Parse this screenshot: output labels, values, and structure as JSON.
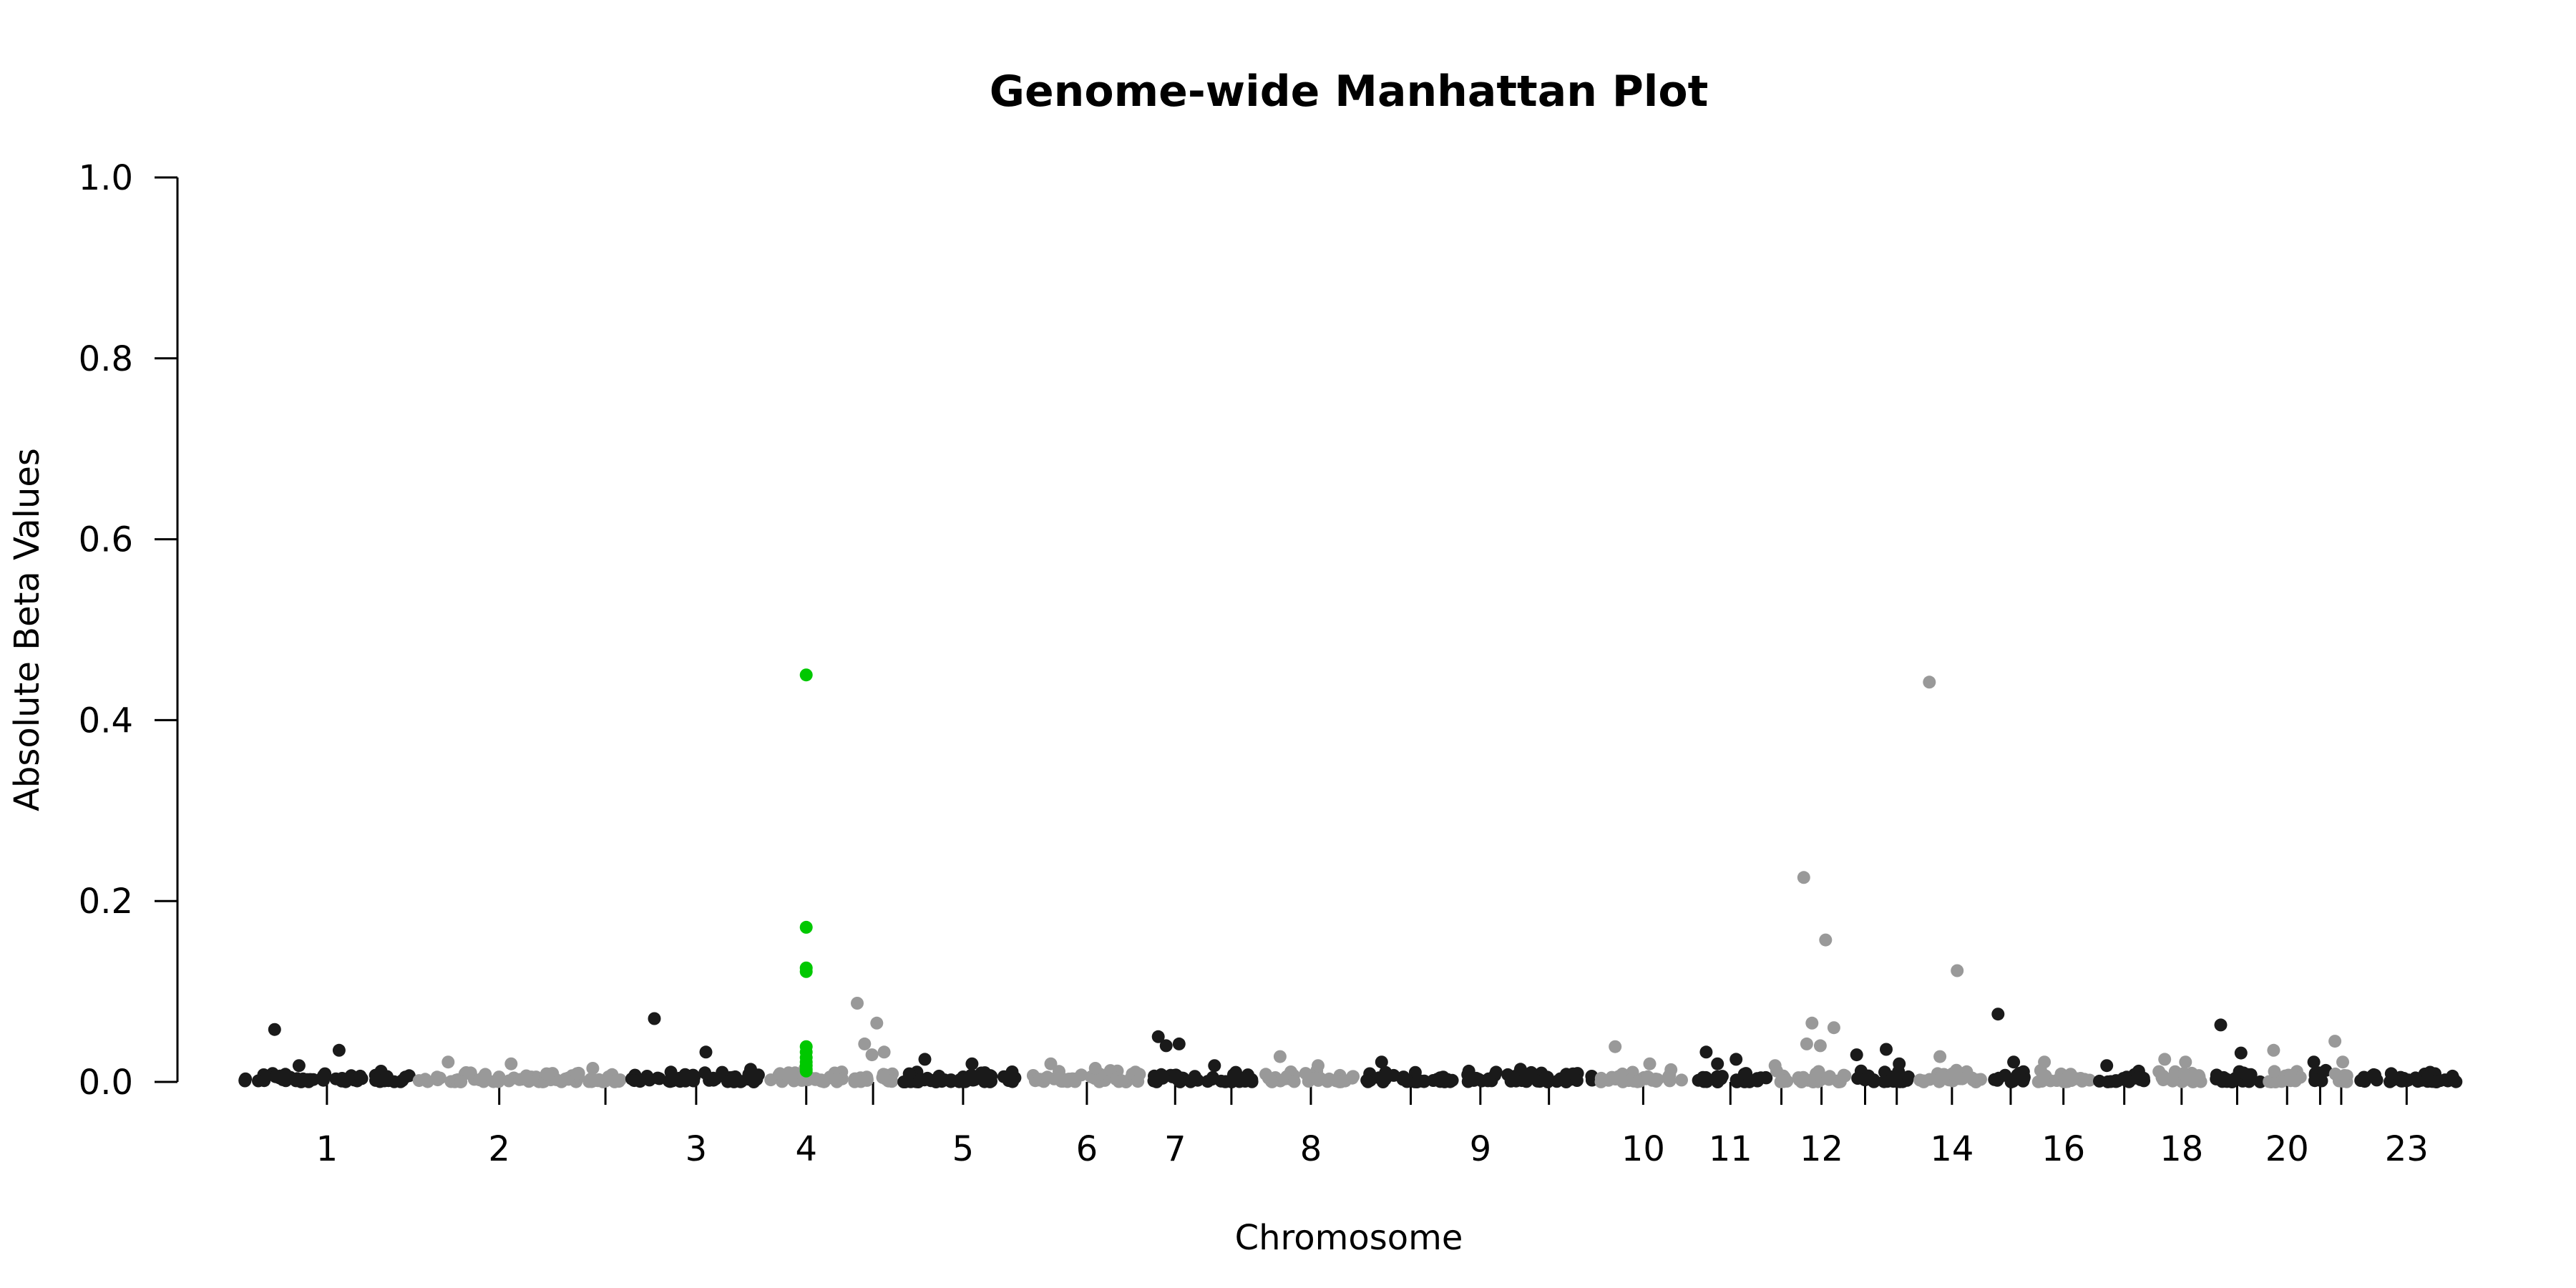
{
  "chart_data": {
    "type": "scatter",
    "title": "Genome-wide Manhattan Plot",
    "xlabel": "Chromosome",
    "ylabel": "Absolute Beta Values",
    "ylim": [
      0,
      1
    ],
    "y_ticks": [
      "0.0",
      "0.2",
      "0.4",
      "0.6",
      "0.8",
      "1.0"
    ],
    "x_tick_labels": [
      "1",
      "2",
      "3",
      "4",
      "5",
      "6",
      "7",
      "8",
      "9",
      "10",
      "11",
      "12",
      "14",
      "16",
      "18",
      "20",
      "23"
    ],
    "grid": false,
    "legend": "none",
    "colors": {
      "dark": "#1a1a1a",
      "light": "#999999",
      "highlight": "#00c800"
    },
    "chromosomes": [
      {
        "label": "1",
        "color": "dark",
        "peaks": [
          0.058,
          0.035,
          0.018
        ]
      },
      {
        "label": "2",
        "color": "light",
        "peaks": [
          0.022,
          0.02
        ]
      },
      {
        "label": "",
        "color": "light",
        "peaks": [
          0.015
        ]
      },
      {
        "label": "3",
        "color": "dark",
        "peaks": [
          0.07,
          0.033
        ]
      },
      {
        "label": "4",
        "color": "highlight",
        "peaks": [
          0.45,
          0.171,
          0.126,
          0.122,
          0.039,
          0.033,
          0.027,
          0.022,
          0.018,
          0.014,
          0.012
        ]
      },
      {
        "label": "",
        "color": "light",
        "peaks": [
          0.087,
          0.065,
          0.042,
          0.033,
          0.03
        ]
      },
      {
        "label": "5",
        "color": "dark",
        "peaks": [
          0.025,
          0.02
        ]
      },
      {
        "label": "6",
        "color": "light",
        "peaks": [
          0.02,
          0.015
        ]
      },
      {
        "label": "7",
        "color": "dark",
        "peaks": [
          0.05,
          0.042,
          0.04
        ]
      },
      {
        "label": "",
        "color": "dark",
        "peaks": [
          0.018
        ]
      },
      {
        "label": "8",
        "color": "light",
        "peaks": [
          0.028,
          0.018
        ]
      },
      {
        "label": "",
        "color": "dark",
        "peaks": [
          0.022
        ]
      },
      {
        "label": "9",
        "color": "dark",
        "peaks": [
          0.008
        ]
      },
      {
        "label": "",
        "color": "dark",
        "peaks": [
          0.014
        ]
      },
      {
        "label": "10",
        "color": "light",
        "peaks": [
          0.039,
          0.02
        ]
      },
      {
        "label": "11",
        "color": "dark",
        "peaks": [
          0.033,
          0.025,
          0.02
        ]
      },
      {
        "label": "",
        "color": "light",
        "peaks": [
          0.018
        ]
      },
      {
        "label": "12",
        "color": "light",
        "peaks": [
          0.226,
          0.157,
          0.065,
          0.06,
          0.04,
          0.042
        ]
      },
      {
        "label": "",
        "color": "dark",
        "peaks": [
          0.03
        ]
      },
      {
        "label": "",
        "color": "dark",
        "peaks": [
          0.036,
          0.02
        ]
      },
      {
        "label": "14",
        "color": "light",
        "peaks": [
          0.442,
          0.123,
          0.028
        ]
      },
      {
        "label": "",
        "color": "dark",
        "peaks": [
          0.075,
          0.022
        ]
      },
      {
        "label": "16",
        "color": "light",
        "peaks": [
          0.022
        ]
      },
      {
        "label": "",
        "color": "dark",
        "peaks": [
          0.018
        ]
      },
      {
        "label": "18",
        "color": "light",
        "peaks": [
          0.025,
          0.022
        ]
      },
      {
        "label": "",
        "color": "dark",
        "peaks": [
          0.063,
          0.032
        ]
      },
      {
        "label": "20",
        "color": "light",
        "peaks": [
          0.035
        ]
      },
      {
        "label": "",
        "color": "dark",
        "peaks": [
          0.022
        ]
      },
      {
        "label": "",
        "color": "light",
        "peaks": [
          0.045,
          0.022
        ]
      },
      {
        "label": "23",
        "color": "dark",
        "peaks": [
          0.008
        ]
      }
    ]
  }
}
